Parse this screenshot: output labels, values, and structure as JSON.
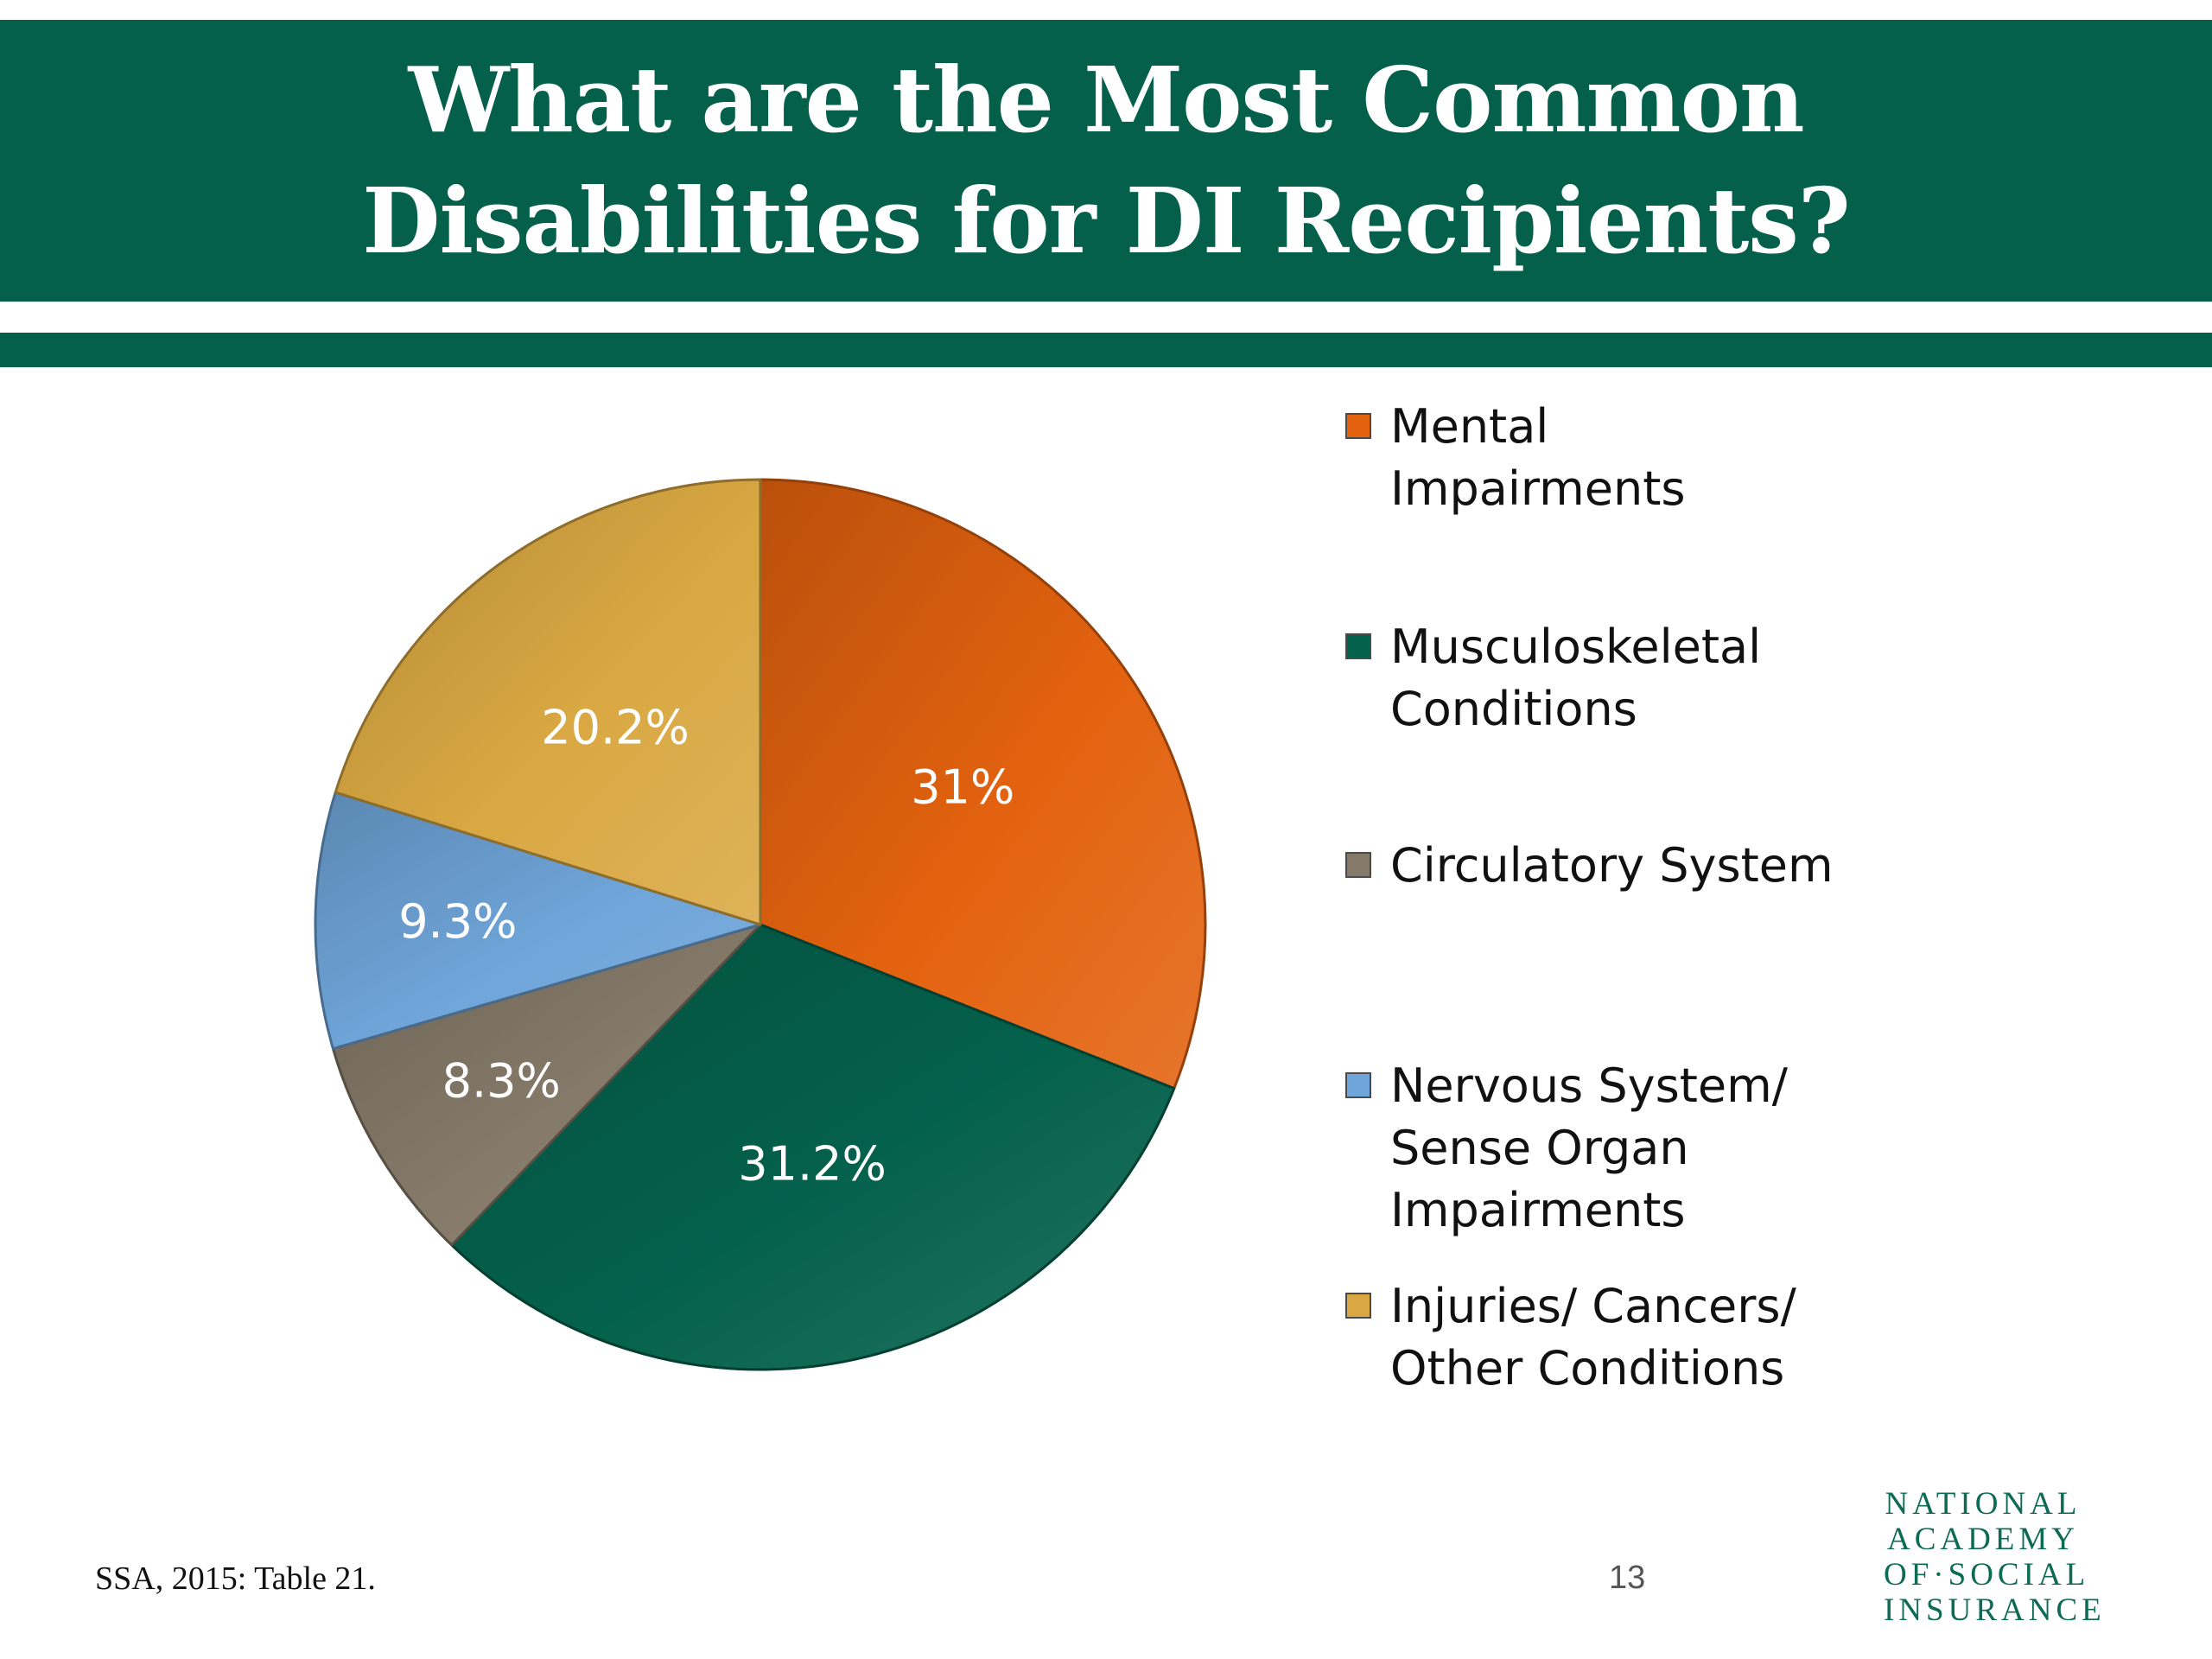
{
  "slide": {
    "title_lines": [
      "What are the Most Common",
      "Disabilities for DI Recipients?"
    ],
    "source": "SSA, 2015: Table 21.",
    "page_number": "13",
    "logo_lines": [
      "NATIONAL",
      "ACADEMY",
      "OF·SOCIAL",
      "INSURANCE"
    ]
  },
  "colors": {
    "band": "#04604b",
    "mental": "#e3620f",
    "musculoskeletal": "#04614c",
    "circulatory": "#857a69",
    "nervous": "#6fa5d9",
    "injuries": "#d9a842"
  },
  "chart_data": {
    "type": "pie",
    "title": "What are the Most Common Disabilities for DI Recipients?",
    "legend_position": "right",
    "slices": [
      {
        "label": "Mental Impairments",
        "legend_lines": [
          "Mental",
          "Impairments"
        ],
        "value": 31.0,
        "value_label": "31%",
        "color": "#e3620f"
      },
      {
        "label": "Musculoskeletal Conditions",
        "legend_lines": [
          "Musculoskeletal",
          "Conditions"
        ],
        "value": 31.2,
        "value_label": "31.2%",
        "color": "#04614c"
      },
      {
        "label": "Circulatory System",
        "legend_lines": [
          "Circulatory System"
        ],
        "value": 8.3,
        "value_label": "8.3%",
        "color": "#857a69"
      },
      {
        "label": "Nervous System/ Sense Organ Impairments",
        "legend_lines": [
          "Nervous System/",
          "Sense Organ",
          "Impairments"
        ],
        "value": 9.3,
        "value_label": "9.3%",
        "color": "#6fa5d9"
      },
      {
        "label": "Injuries/ Cancers/ Other Conditions",
        "legend_lines": [
          "Injuries/ Cancers/",
          "Other Conditions"
        ],
        "value": 20.2,
        "value_label": "20.2%",
        "color": "#d9a842"
      }
    ]
  }
}
